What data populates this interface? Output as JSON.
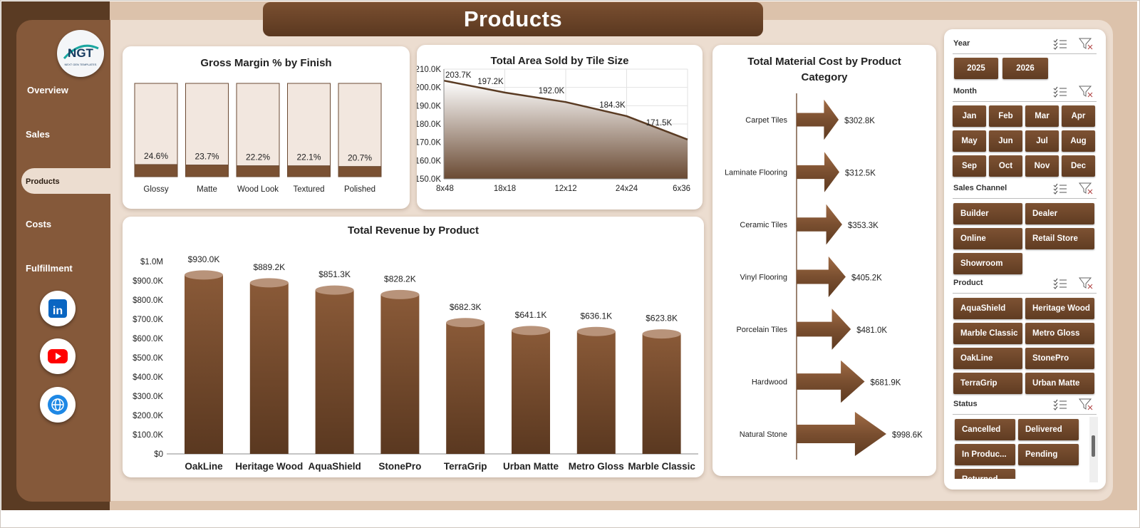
{
  "header": {
    "title": "Products"
  },
  "logo": {
    "text": "NGT",
    "subtitle": "NEXT GEN TEMPLATES"
  },
  "sidebar": {
    "items": [
      {
        "label": "Overview",
        "active": false
      },
      {
        "label": "Sales",
        "active": false
      },
      {
        "label": "Products",
        "active": true
      },
      {
        "label": "Costs",
        "active": false
      },
      {
        "label": "Fulfillment",
        "active": false
      }
    ],
    "social": [
      {
        "icon": "linkedin-icon",
        "text": "in",
        "color": "#0a66c2"
      },
      {
        "icon": "youtube-icon",
        "color": "#ff0000"
      },
      {
        "icon": "globe-icon",
        "color": "#1e88e5"
      }
    ]
  },
  "colors": {
    "brand_dark": "#5a3b23",
    "brand": "#85593a",
    "bar_light": "#f2e7df",
    "bar_dark": "#7a5133",
    "background": "#ecddd0"
  },
  "chart_data": [
    {
      "id": "gross-margin",
      "type": "bar",
      "title": "Gross Margin % by Finish",
      "categories": [
        "Glossy",
        "Matte",
        "Wood Look",
        "Textured",
        "Polished"
      ],
      "values": [
        24.6,
        23.7,
        22.2,
        22.1,
        20.7
      ],
      "labels": [
        "24.6%",
        "23.7%",
        "22.2%",
        "22.1%",
        "20.7%"
      ],
      "ylim": [
        0,
        100
      ]
    },
    {
      "id": "area-sold",
      "type": "area",
      "title": "Total Area Sold by Tile Size",
      "categories": [
        "8x48",
        "18x18",
        "12x12",
        "24x24",
        "6x36"
      ],
      "values": [
        203.7,
        197.2,
        192.0,
        184.3,
        171.5
      ],
      "labels": [
        "203.7K",
        "197.2K",
        "192.0K",
        "184.3K",
        "171.5K"
      ],
      "ylim": [
        150,
        210
      ],
      "yticks": [
        "210.0K",
        "200.0K",
        "190.0K",
        "180.0K",
        "170.0K",
        "160.0K",
        "150.0K"
      ],
      "grid": true
    },
    {
      "id": "material-cost",
      "type": "bar",
      "orientation": "horizontal",
      "title": "Total Material Cost by Product Category",
      "categories": [
        "Carpet Tiles",
        "Laminate Flooring",
        "Ceramic Tiles",
        "Vinyl Flooring",
        "Porcelain Tiles",
        "Hardwood",
        "Natural Stone"
      ],
      "values": [
        302.8,
        312.5,
        353.3,
        405.2,
        481.0,
        681.9,
        998.6
      ],
      "labels": [
        "$302.8K",
        "$312.5K",
        "$353.3K",
        "$405.2K",
        "$481.0K",
        "$681.9K",
        "$998.6K"
      ]
    },
    {
      "id": "revenue-product",
      "type": "bar",
      "title": "Total Revenue  by Product",
      "categories": [
        "OakLine",
        "Heritage Wood",
        "AquaShield",
        "StonePro",
        "TerraGrip",
        "Urban Matte",
        "Metro Gloss",
        "Marble Classic"
      ],
      "values": [
        930.0,
        889.2,
        851.3,
        828.2,
        682.3,
        641.1,
        636.1,
        623.8
      ],
      "labels": [
        "$930.0K",
        "$889.2K",
        "$851.3K",
        "$828.2K",
        "$682.3K",
        "$641.1K",
        "$636.1K",
        "$623.8K"
      ],
      "ylim": [
        0,
        1000
      ],
      "yticks": [
        "$1.0M",
        "$900.0K",
        "$800.0K",
        "$700.0K",
        "$600.0K",
        "$500.0K",
        "$400.0K",
        "$300.0K",
        "$200.0K",
        "$100.0K",
        "$0"
      ]
    }
  ],
  "slicers": {
    "year": {
      "label": "Year",
      "options": [
        "2025",
        "2026"
      ]
    },
    "month": {
      "label": "Month",
      "options": [
        "Jan",
        "Feb",
        "Mar",
        "Apr",
        "May",
        "Jun",
        "Jul",
        "Aug",
        "Sep",
        "Oct",
        "Nov",
        "Dec"
      ]
    },
    "channel": {
      "label": "Sales Channel",
      "options": [
        "Builder",
        "Dealer",
        "Online",
        "Retail Store",
        "Showroom"
      ]
    },
    "product": {
      "label": "Product",
      "options": [
        "AquaShield",
        "Heritage Wood",
        "Marble Classic",
        "Metro Gloss",
        "OakLine",
        "StonePro",
        "TerraGrip",
        "Urban Matte"
      ]
    },
    "status": {
      "label": "Status",
      "options": [
        "Cancelled",
        "Delivered",
        "In Produc...",
        "Pending",
        "Returned"
      ]
    }
  }
}
